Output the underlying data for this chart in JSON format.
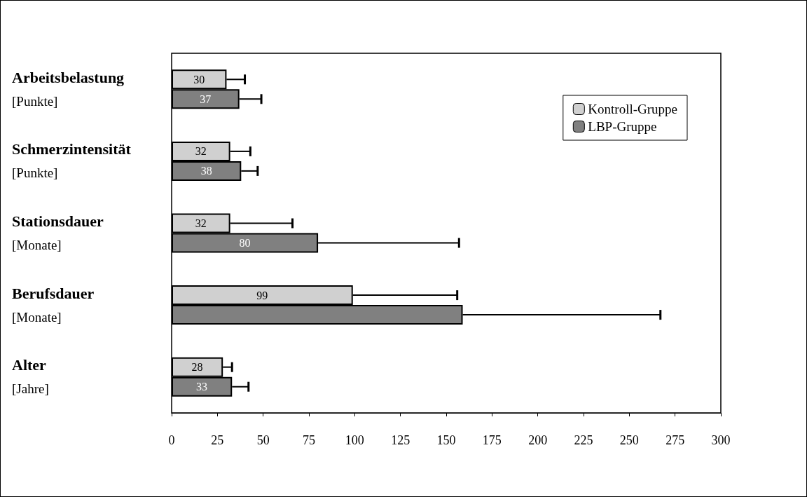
{
  "chart_data": {
    "type": "bar",
    "orientation": "horizontal",
    "categories": [
      "Arbeitsbelastung\n[Punkte]",
      "Schmerzintensität\n[Punkte]",
      "Stationsdauer\n[Monate]",
      "Berufsdauer\n[Monate]",
      "Alter\n[Jahre]"
    ],
    "series": [
      {
        "name": "Kontroll-Gruppe",
        "color": "#d0d0d0",
        "values": [
          30,
          32,
          32,
          99,
          28
        ],
        "errors": [
          10,
          11,
          34,
          57,
          5
        ],
        "value_labels": [
          "30",
          "32",
          "32",
          "99",
          "28"
        ]
      },
      {
        "name": "LBP-Gruppe",
        "color": "#808080",
        "values": [
          37,
          38,
          80,
          159,
          33
        ],
        "errors": [
          12,
          9,
          77,
          108,
          9
        ],
        "value_labels": [
          "37",
          "38",
          "80",
          null,
          "33"
        ]
      }
    ],
    "xlim": [
      0,
      300
    ],
    "xticks": [
      0,
      25,
      50,
      75,
      100,
      125,
      150,
      175,
      200,
      225,
      250,
      275,
      300
    ],
    "legend": "top right",
    "grid": false
  }
}
